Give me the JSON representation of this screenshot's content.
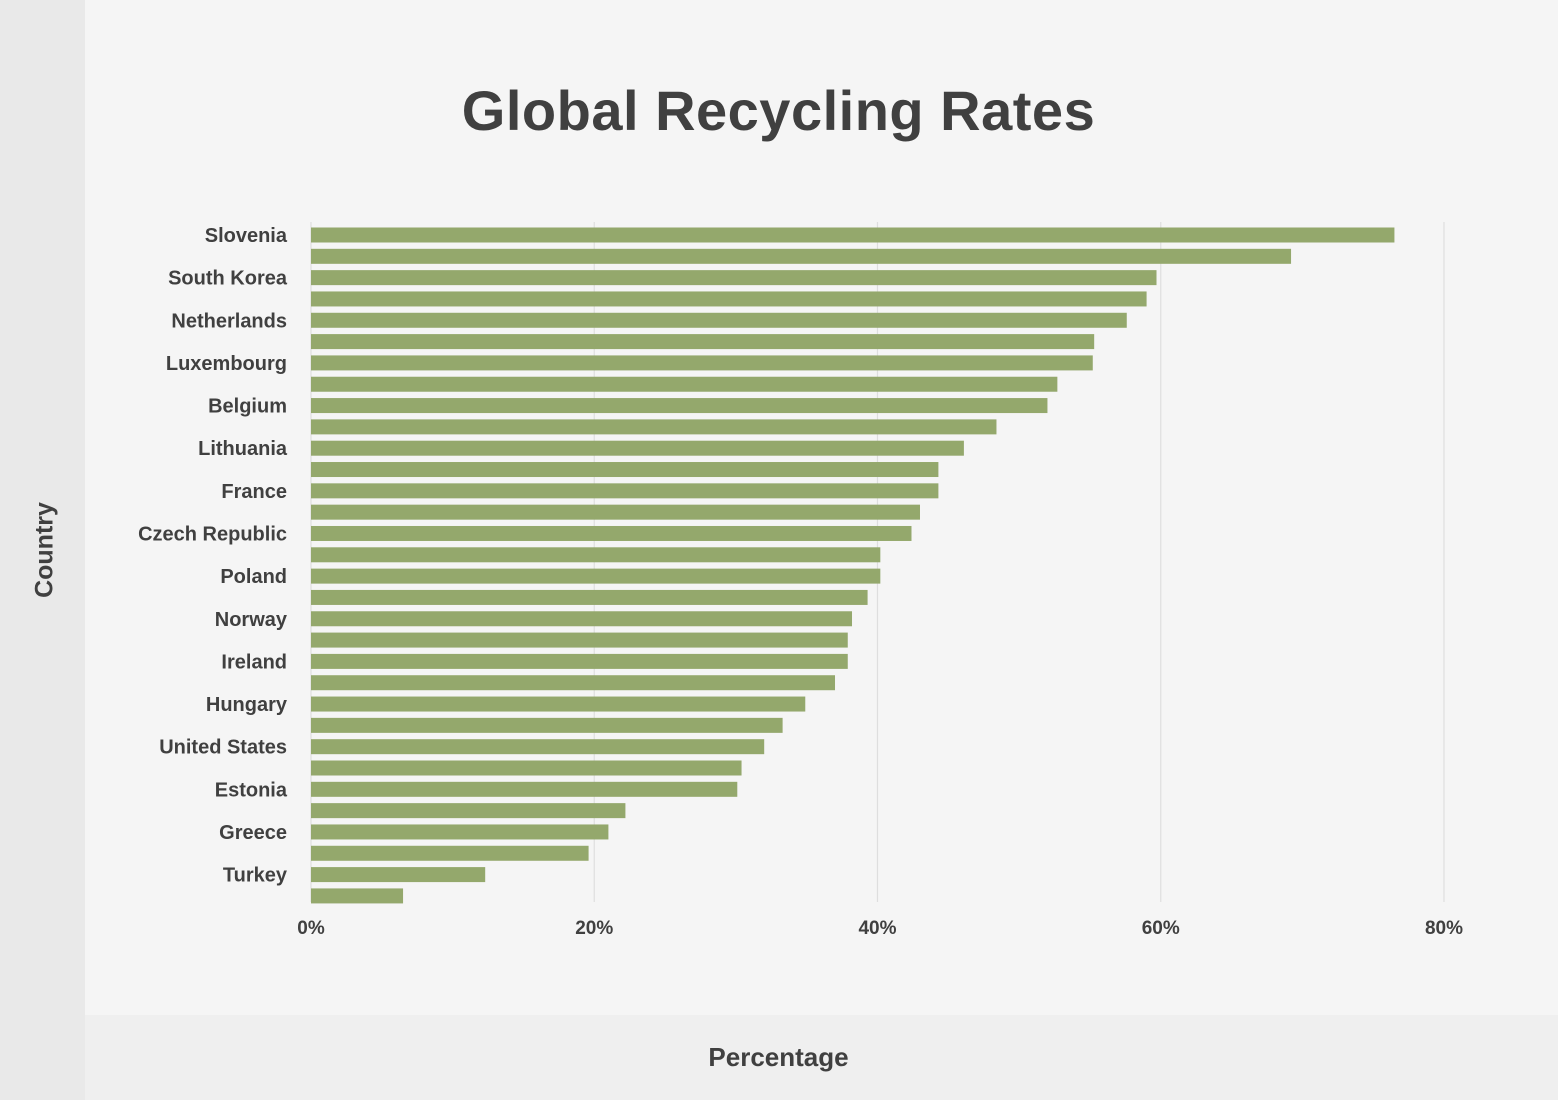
{
  "chart_data": {
    "type": "bar",
    "orientation": "horizontal",
    "title": "Global Recycling Rates",
    "xlabel": "Percentage",
    "ylabel": "Country",
    "xlim": [
      0,
      80
    ],
    "x_ticks": [
      "0%",
      "20%",
      "40%",
      "60%",
      "80%"
    ],
    "grid": true,
    "bar_color": "#94a86c",
    "categories": [
      "Slovenia",
      "",
      "South Korea",
      "",
      "Netherlands",
      "",
      "Luxembourg",
      "",
      "Belgium",
      "",
      "Lithuania",
      "",
      "France",
      "",
      "Czech Republic",
      "",
      "Poland",
      "",
      "Norway",
      "",
      "Ireland",
      "",
      "Hungary",
      "",
      "United States",
      "",
      "Estonia",
      "",
      "Greece",
      "",
      "Turkey",
      ""
    ],
    "values": [
      76.5,
      69.2,
      59.7,
      59.0,
      57.6,
      55.3,
      55.2,
      52.7,
      52.0,
      48.4,
      46.1,
      44.3,
      44.3,
      43.0,
      42.4,
      40.2,
      40.2,
      39.3,
      38.2,
      37.9,
      37.9,
      37.0,
      34.9,
      33.3,
      32.0,
      30.4,
      30.1,
      22.2,
      21.0,
      19.6,
      12.3,
      6.5
    ]
  }
}
